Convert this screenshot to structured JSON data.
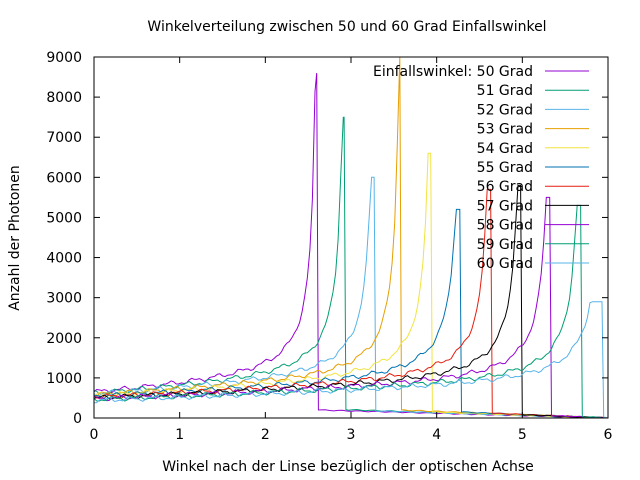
{
  "chart_data": {
    "type": "line",
    "title": "Winkelverteilung zwischen 50 und 60 Grad Einfallswinkel",
    "xlabel": "Winkel nach der Linse bezüglich der optischen Achse",
    "ylabel": "Anzahl der Photonen",
    "xlim": [
      0,
      6
    ],
    "ylim": [
      0,
      9000
    ],
    "xticks": [
      "0",
      "1",
      "2",
      "3",
      "4",
      "5",
      "6"
    ],
    "yticks": [
      "0",
      "1000",
      "2000",
      "3000",
      "4000",
      "5000",
      "6000",
      "7000",
      "8000",
      "9000"
    ],
    "grid": false,
    "legend_position": "top-right",
    "series": [
      {
        "name": "Einfallswinkel: 50 Grad",
        "color": "#9400d3",
        "start": 650,
        "peak_x": 2.6,
        "peak_y": 8600,
        "tail": 200
      },
      {
        "name": "51 Grad",
        "color": "#009e73",
        "start": 620,
        "peak_x": 2.92,
        "peak_y": 7500,
        "tail": 210
      },
      {
        "name": "52 Grad",
        "color": "#56b4e9",
        "start": 600,
        "peak_x": 3.27,
        "peak_y": 6000,
        "tail": 180
      },
      {
        "name": "53 Grad",
        "color": "#e69f00",
        "start": 580,
        "peak_x": 3.57,
        "peak_y": 9000,
        "tail": 200
      },
      {
        "name": "54 Grad",
        "color": "#f0e442",
        "start": 560,
        "peak_x": 3.93,
        "peak_y": 6600,
        "tail": 150
      },
      {
        "name": "55 Grad",
        "color": "#0072b2",
        "start": 540,
        "peak_x": 4.27,
        "peak_y": 5200,
        "tail": 150
      },
      {
        "name": "56 Grad",
        "color": "#e51e10",
        "start": 520,
        "peak_x": 4.63,
        "peak_y": 5700,
        "tail": 120
      },
      {
        "name": "57 Grad",
        "color": "#000000",
        "start": 500,
        "peak_x": 4.98,
        "peak_y": 5800,
        "tail": 80
      },
      {
        "name": "58 Grad",
        "color": "#9400d3",
        "start": 480,
        "peak_x": 5.32,
        "peak_y": 5500,
        "tail": 60
      },
      {
        "name": "59 Grad",
        "color": "#009e73",
        "start": 460,
        "peak_x": 5.68,
        "peak_y": 5300,
        "tail": 40
      },
      {
        "name": "60 Grad",
        "color": "#56b4e9",
        "start": 440,
        "peak_x": 5.93,
        "peak_y": 2900,
        "tail": 20
      }
    ]
  }
}
